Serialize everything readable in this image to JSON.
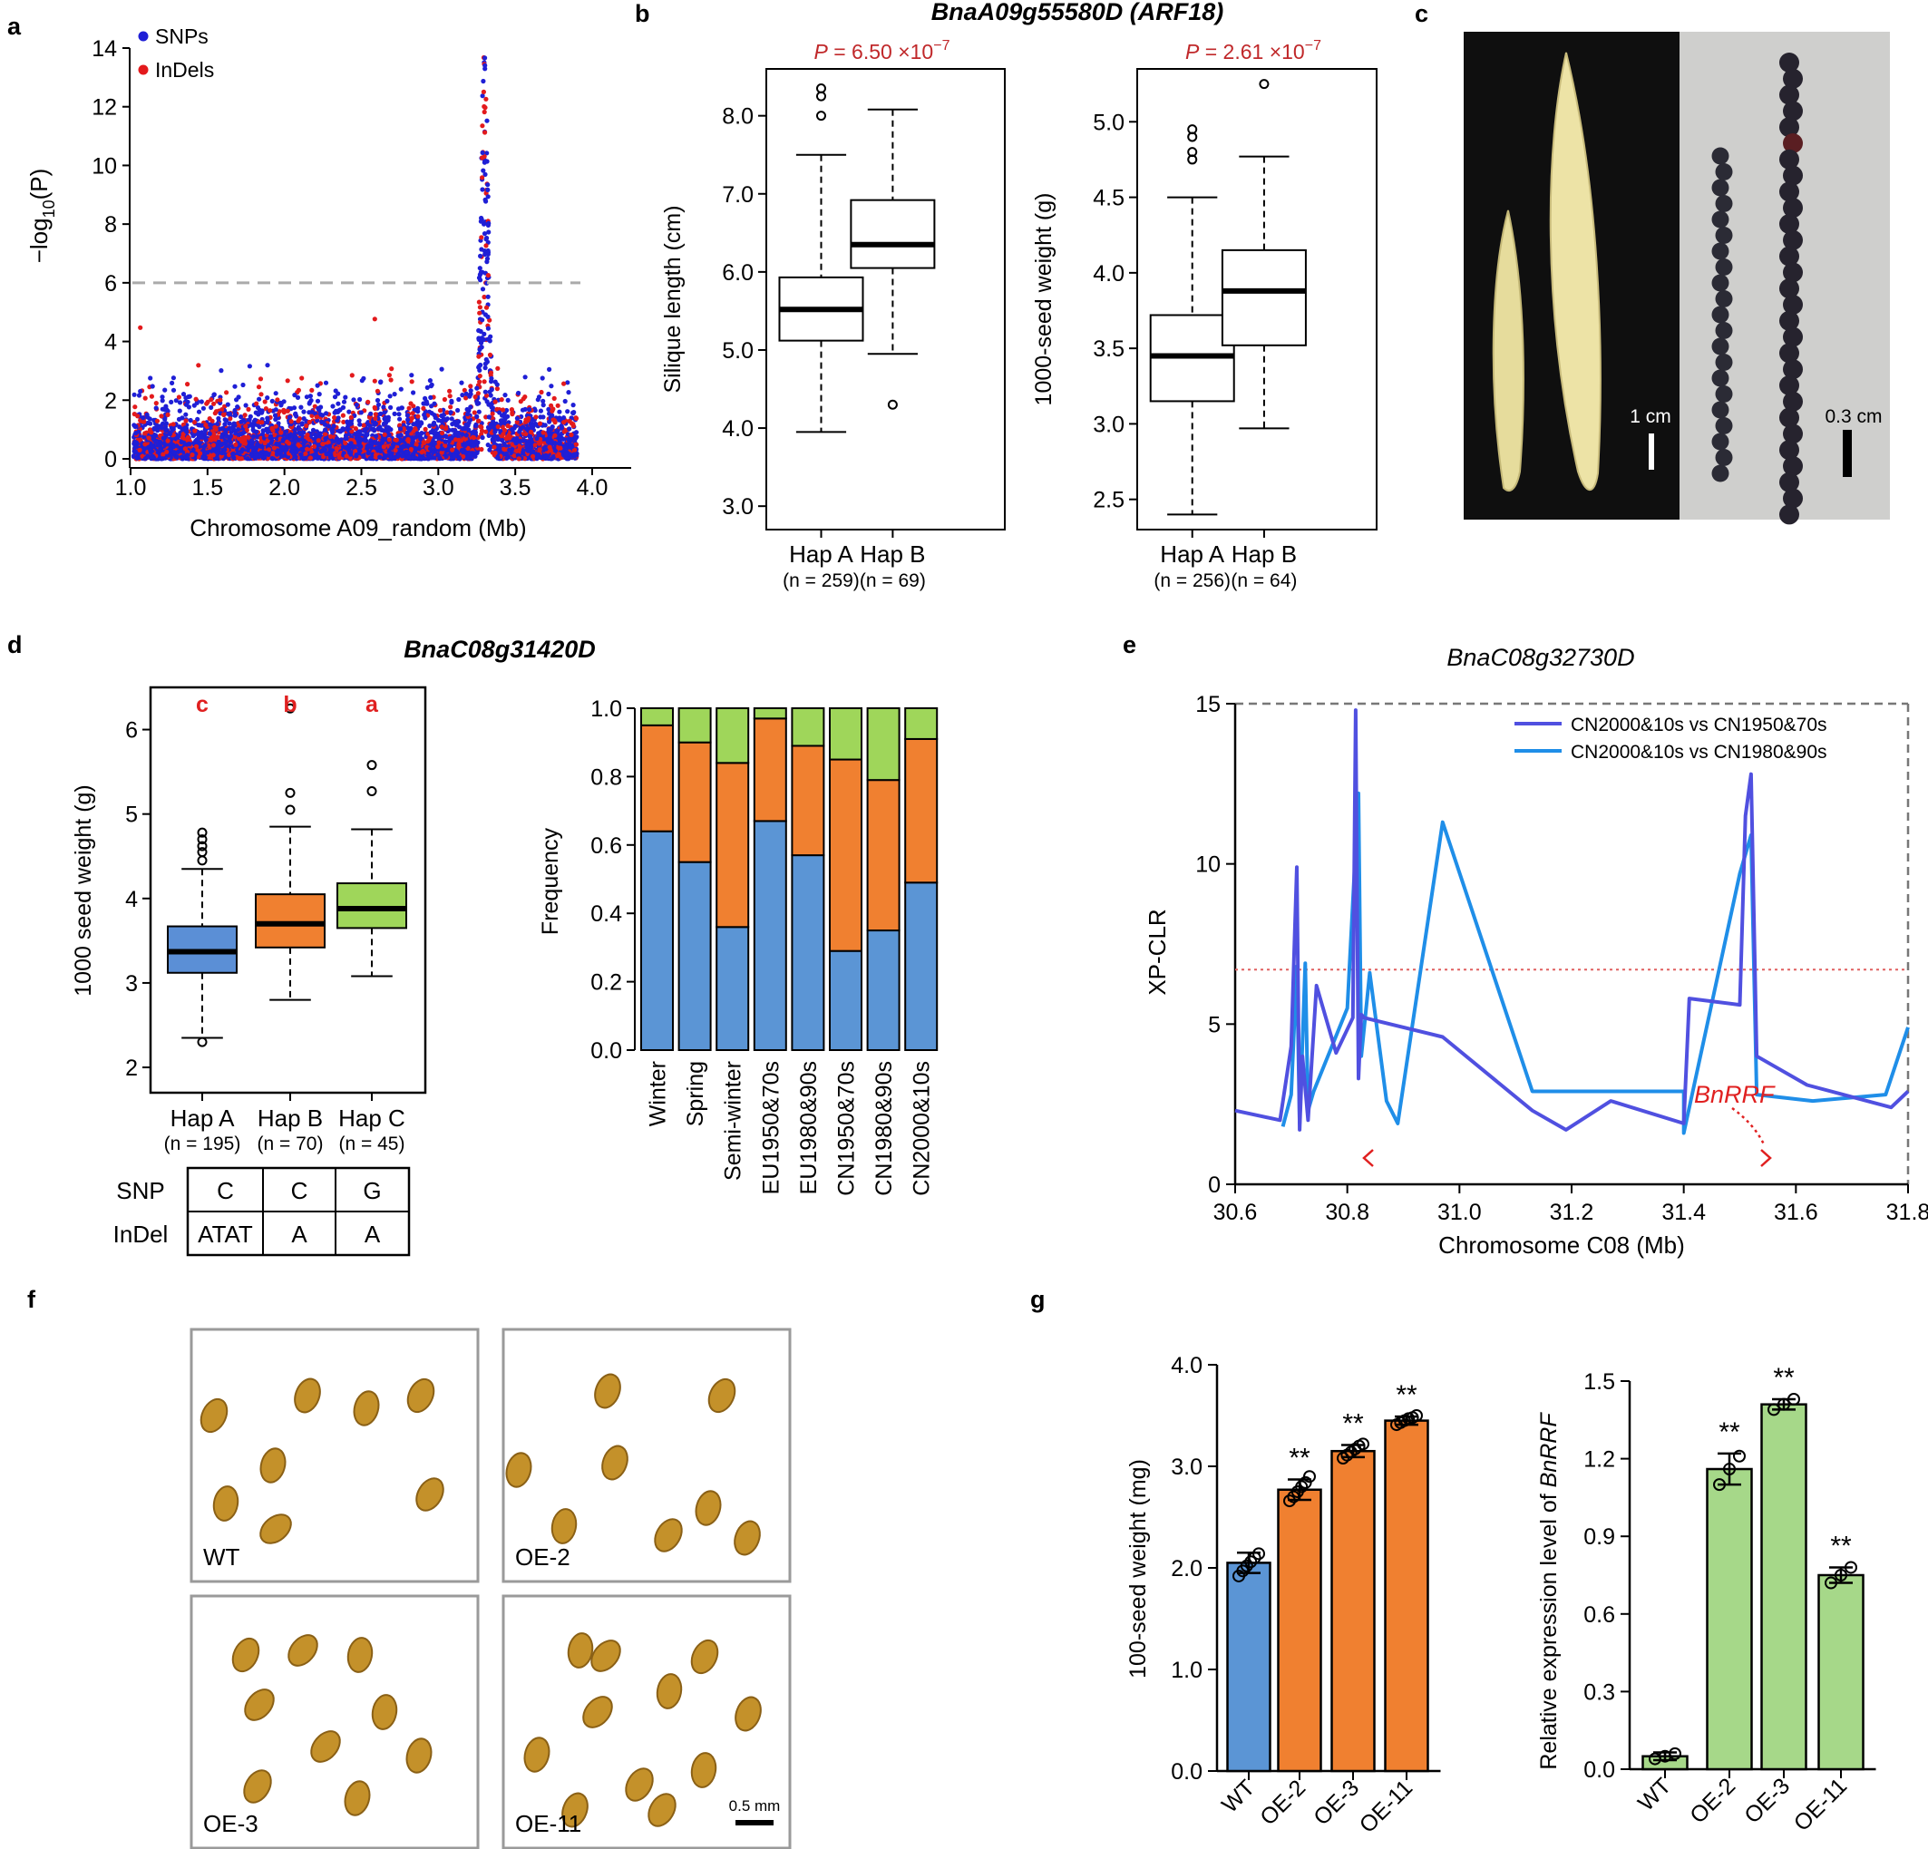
{
  "panel_letters": [
    "a",
    "b",
    "c",
    "d",
    "e",
    "f",
    "g"
  ],
  "chart_data": [
    {
      "id": "a",
      "type": "scatter",
      "title": "",
      "xlabel": "Chromosome A09_random (Mb)",
      "ylabel_prefix": "−log",
      "ylabel_sub": "10",
      "ylabel_suffix": "(P)",
      "xlim": [
        1.0,
        4.0
      ],
      "ylim": [
        0,
        14
      ],
      "xticks": [
        "1.0",
        "1.5",
        "2.0",
        "2.5",
        "3.0",
        "3.5",
        "4.0"
      ],
      "yticks": [
        "0",
        "2",
        "4",
        "6",
        "8",
        "10",
        "12",
        "14"
      ],
      "threshold": 6,
      "legend": [
        {
          "name": "SNPs",
          "color": "#1f1fd6"
        },
        {
          "name": "InDels",
          "color": "#e31a1c"
        }
      ],
      "legend_position": "top-left",
      "data_range": [
        1.02,
        3.9
      ],
      "peak": {
        "center": 3.3,
        "max": 13.9
      }
    },
    {
      "id": "b1",
      "type": "box",
      "gene": "BnaA09g55580D (ARF18)",
      "p_prefix": "P",
      "p_value": "= 6.50 ×10",
      "p_exp": "−7",
      "ylabel": "Silique length (cm)",
      "ylim": [
        2.7,
        8.6
      ],
      "yticks": [
        "3.0",
        "4.0",
        "5.0",
        "6.0",
        "7.0",
        "8.0"
      ],
      "groups": [
        {
          "name": "Hap A",
          "n": "(n = 259)",
          "min": 3.95,
          "q1": 5.12,
          "median": 5.52,
          "q3": 5.93,
          "max": 7.5,
          "outliers": [
            8.0,
            8.25,
            8.35
          ],
          "color": "#ffffff"
        },
        {
          "name": "Hap B",
          "n": "(n = 69)",
          "min": 4.95,
          "q1": 6.05,
          "median": 6.35,
          "q3": 6.92,
          "max": 8.08,
          "outliers": [
            4.3
          ],
          "color": "#ffffff"
        }
      ]
    },
    {
      "id": "b2",
      "type": "box",
      "p_prefix": "P",
      "p_value": "= 2.61 ×10",
      "p_exp": "−7",
      "ylabel": "1000-seed weight (g)",
      "ylim": [
        2.3,
        5.35
      ],
      "yticks": [
        "2.5",
        "3.0",
        "3.5",
        "4.0",
        "4.5",
        "5.0"
      ],
      "groups": [
        {
          "name": "Hap A",
          "n": "(n = 256)",
          "min": 2.4,
          "q1": 3.15,
          "median": 3.45,
          "q3": 3.72,
          "max": 4.5,
          "outliers": [
            4.75,
            4.8,
            4.9,
            4.95
          ],
          "color": "#ffffff"
        },
        {
          "name": "Hap B",
          "n": "(n = 64)",
          "min": 2.97,
          "q1": 3.52,
          "median": 3.88,
          "q3": 4.15,
          "max": 4.77,
          "outliers": [
            5.25
          ],
          "color": "#ffffff"
        }
      ]
    },
    {
      "id": "d1",
      "type": "box",
      "gene": "BnaC08g31420D",
      "ylabel": "1000 seed weight (g)",
      "ylim": [
        1.7,
        6.5
      ],
      "yticks": [
        "2",
        "3",
        "4",
        "5",
        "6"
      ],
      "letters": [
        "c",
        "b",
        "a"
      ],
      "groups": [
        {
          "name": "Hap A",
          "n": "(n = 195)",
          "min": 2.35,
          "q1": 3.12,
          "median": 3.37,
          "q3": 3.67,
          "max": 4.35,
          "outliers": [
            2.3,
            4.45,
            4.55,
            4.62,
            4.7,
            4.78
          ],
          "color": "#5b8fd6"
        },
        {
          "name": "Hap B",
          "n": "(n = 70)",
          "min": 2.8,
          "q1": 3.42,
          "median": 3.7,
          "q3": 4.05,
          "max": 4.85,
          "outliers": [
            5.05,
            5.25,
            6.25
          ],
          "color": "#f08030"
        },
        {
          "name": "Hap C",
          "n": "(n = 45)",
          "min": 3.08,
          "q1": 3.65,
          "median": 3.88,
          "q3": 4.18,
          "max": 4.82,
          "outliers": [
            5.27,
            5.58
          ],
          "color": "#9fd65a"
        }
      ],
      "haplotype_table": {
        "rows": [
          {
            "label": "SNP",
            "values": [
              "C",
              "C",
              "G"
            ]
          },
          {
            "label": "InDel",
            "values": [
              "ATAT",
              "A",
              "A"
            ]
          }
        ]
      }
    },
    {
      "id": "d2",
      "type": "bar",
      "stacked": true,
      "ylabel": "Frequency",
      "ylim": [
        0,
        1.0
      ],
      "yticks": [
        "0.0",
        "0.2",
        "0.4",
        "0.6",
        "0.8",
        "1.0"
      ],
      "categories": [
        "Winter",
        "Spring",
        "Semi-winter",
        "EU1950&70s",
        "EU1980&90s",
        "CN1950&70s",
        "CN1980&90s",
        "CN2000&10s"
      ],
      "series": [
        {
          "key": "Hap A",
          "color": "#5b95d5",
          "values": [
            0.64,
            0.55,
            0.36,
            0.67,
            0.57,
            0.29,
            0.35,
            0.49
          ]
        },
        {
          "key": "Hap B",
          "color": "#f08030",
          "values": [
            0.31,
            0.35,
            0.48,
            0.3,
            0.32,
            0.56,
            0.44,
            0.42
          ]
        },
        {
          "key": "Hap C",
          "color": "#9fd65a",
          "values": [
            0.05,
            0.1,
            0.16,
            0.03,
            0.11,
            0.15,
            0.21,
            0.09
          ]
        }
      ]
    },
    {
      "id": "e",
      "type": "line",
      "gene": "BnaC08g32730D",
      "xlabel": "Chromosome C08 (Mb)",
      "ylabel": "XP-CLR",
      "xlim": [
        30.6,
        31.8
      ],
      "ylim": [
        0,
        15
      ],
      "xticks": [
        "30.6",
        "30.8",
        "31.0",
        "31.2",
        "31.4",
        "31.6",
        "31.8"
      ],
      "yticks": [
        "0",
        "5",
        "10",
        "15"
      ],
      "threshold": 6.7,
      "annotation": "BnRRF",
      "legend_position": "top-right",
      "series": [
        {
          "name": "CN2000&10s vs CN1950&70s",
          "color": "#5050e0",
          "x": [
            30.6,
            30.68,
            30.7,
            30.71,
            30.715,
            30.72,
            30.73,
            30.745,
            30.78,
            30.81,
            30.815,
            30.82,
            30.825,
            30.83,
            30.97,
            31.13,
            31.19,
            31.27,
            31.4,
            31.41,
            31.5,
            31.51,
            31.52,
            31.53,
            31.62,
            31.77,
            31.8
          ],
          "y": [
            2.3,
            2.0,
            4.3,
            9.9,
            1.7,
            4.0,
            2.0,
            6.2,
            4.1,
            5.2,
            14.8,
            3.3,
            5.3,
            5.2,
            4.6,
            2.3,
            1.7,
            2.6,
            1.9,
            5.8,
            5.6,
            11.5,
            12.8,
            4.0,
            3.1,
            2.4,
            2.9
          ]
        },
        {
          "name": "CN2000&10s vs CN1980&90s",
          "color": "#1f8ee8",
          "x": [
            30.685,
            30.7,
            30.71,
            30.715,
            30.725,
            30.73,
            30.74,
            30.8,
            30.82,
            30.825,
            30.84,
            30.87,
            30.89,
            30.97,
            31.13,
            31.4,
            31.4,
            31.5,
            31.52,
            31.53,
            31.63,
            31.76,
            31.8
          ],
          "y": [
            1.8,
            2.8,
            6.8,
            1.9,
            6.9,
            2.3,
            2.9,
            5.5,
            12.2,
            4.0,
            6.6,
            2.6,
            1.9,
            11.3,
            2.9,
            2.9,
            1.6,
            9.7,
            10.9,
            2.8,
            2.6,
            2.8,
            4.9
          ]
        }
      ]
    },
    {
      "id": "g1",
      "type": "bar",
      "ylabel": "100-seed weight (mg)",
      "ylim": [
        0,
        4.0
      ],
      "yticks": [
        "0.0",
        "1.0",
        "2.0",
        "3.0",
        "4.0"
      ],
      "categories": [
        "WT",
        "OE-2",
        "OE-3",
        "OE-11"
      ],
      "values": [
        2.05,
        2.77,
        3.15,
        3.45
      ],
      "errors": [
        0.1,
        0.1,
        0.06,
        0.04
      ],
      "colors": [
        "#5b95d5",
        "#f08030",
        "#f08030",
        "#f08030"
      ],
      "significance": [
        "",
        "**",
        "**",
        "**"
      ],
      "points": [
        [
          1.92,
          1.97,
          2.02,
          2.06,
          2.1,
          2.14
        ],
        [
          2.66,
          2.7,
          2.75,
          2.8,
          2.84,
          2.9
        ],
        [
          3.08,
          3.11,
          3.14,
          3.17,
          3.2,
          3.22
        ],
        [
          3.41,
          3.43,
          3.45,
          3.47,
          3.48,
          3.5
        ]
      ]
    },
    {
      "id": "g2",
      "type": "bar",
      "ylabel": "Relative expression level of ",
      "ylabel_italic": "BnRRF",
      "ylim": [
        0,
        1.5
      ],
      "yticks": [
        "0.0",
        "0.3",
        "0.6",
        "0.9",
        "1.2",
        "1.5"
      ],
      "categories": [
        "WT",
        "OE-2",
        "OE-3",
        "OE-11"
      ],
      "values": [
        0.05,
        1.16,
        1.41,
        0.75
      ],
      "errors": [
        0.015,
        0.06,
        0.02,
        0.03
      ],
      "colors": [
        "#a6d889",
        "#a6d889",
        "#a6d889",
        "#a6d889"
      ],
      "significance": [
        "",
        "**",
        "**",
        "**"
      ],
      "points": [
        [
          0.04,
          0.05,
          0.06
        ],
        [
          1.1,
          1.16,
          1.21
        ],
        [
          1.39,
          1.41,
          1.43
        ],
        [
          0.72,
          0.75,
          0.78
        ]
      ]
    }
  ],
  "photo_c": {
    "scale_left": "1 cm",
    "scale_right": "0.3 cm"
  },
  "photo_f": {
    "labels": [
      "WT",
      "OE-2",
      "OE-3",
      "OE-11"
    ],
    "scale": "0.5 mm"
  }
}
